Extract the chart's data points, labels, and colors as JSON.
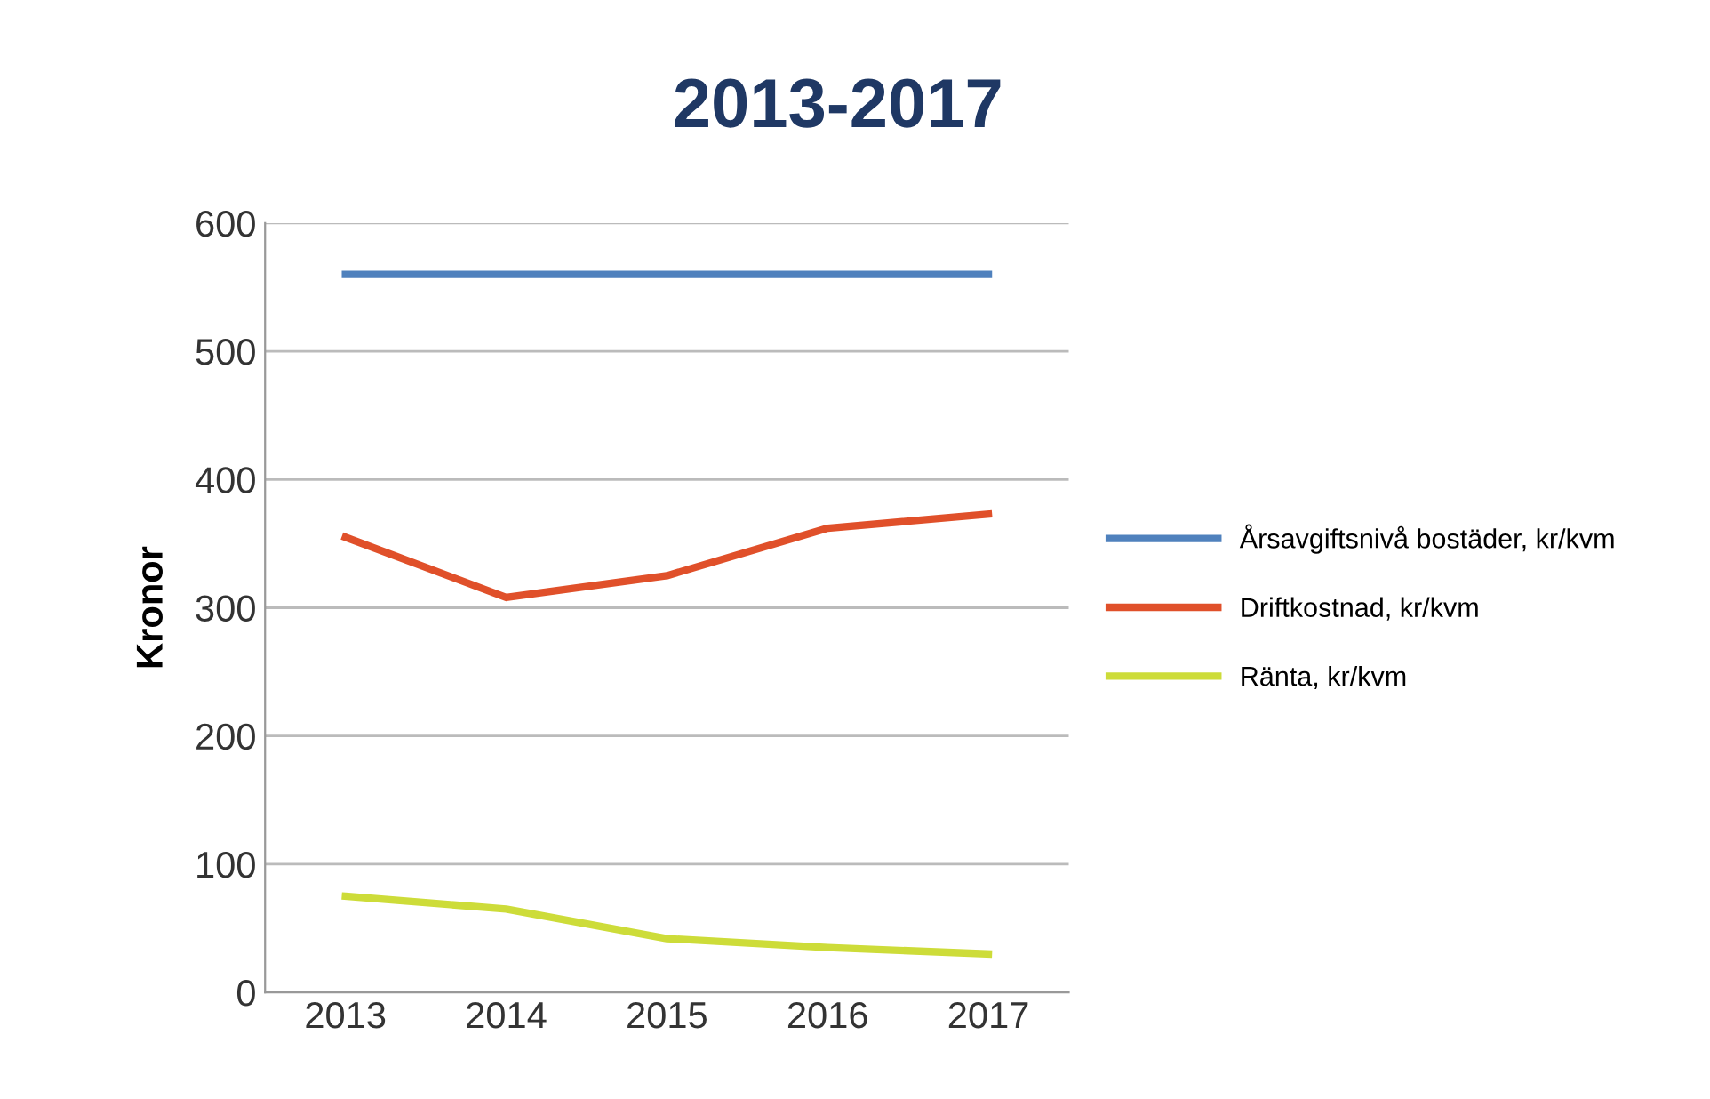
{
  "chart_data": {
    "type": "line",
    "title": "2013-2017",
    "ylabel": "Kronor",
    "categories": [
      "2013",
      "2014",
      "2015",
      "2016",
      "2017"
    ],
    "series": [
      {
        "name": "Årsavgiftsnivå bostäder, kr/kvm",
        "color": "#4f81bd",
        "values": [
          560,
          560,
          560,
          560,
          560
        ]
      },
      {
        "name": "Driftkostnad, kr/kvm",
        "color": "#e0502a",
        "values": [
          355,
          308,
          325,
          362,
          373
        ]
      },
      {
        "name": "Ränta, kr/kvm",
        "color": "#cddc39",
        "values": [
          75,
          65,
          42,
          35,
          30
        ]
      }
    ],
    "ylim": [
      0,
      600
    ],
    "yticks": [
      0,
      100,
      200,
      300,
      400,
      500,
      600
    ],
    "grid": "y",
    "legend": "right",
    "marker": "none",
    "line_style": "solid"
  }
}
